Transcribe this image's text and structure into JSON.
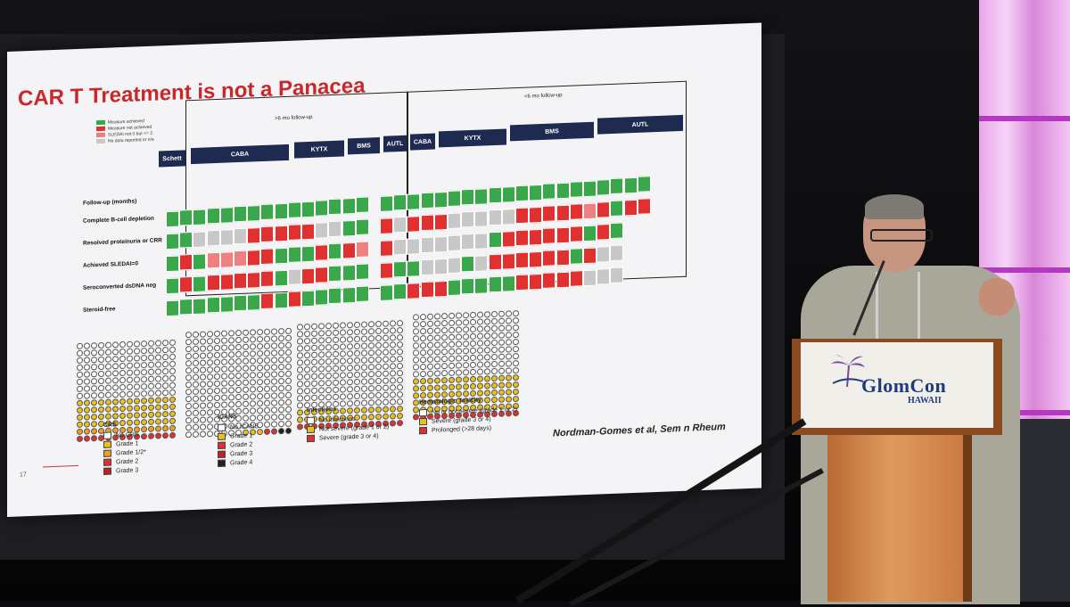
{
  "slide": {
    "title": "CAR T Treatment is not a Panacea",
    "page_number": "17",
    "citation": "Nordman-Gomes et al, Sem   n Rheum",
    "legend": [
      {
        "label": "Measure achieved",
        "color": "#3aa84a"
      },
      {
        "label": "Measure not achieved",
        "color": "#e03030"
      },
      {
        "label": "SLEDAI not 0 but <= 2",
        "color": "#ef8080"
      },
      {
        "label": "No data reported or n/a",
        "color": "#c8c8c8"
      }
    ],
    "follow_long": ">6 mo follow-up",
    "follow_short": "<6 mo follow-up",
    "groups_long": [
      "Schett",
      "CABA",
      "KYTX",
      "BMS",
      "AUTL"
    ],
    "groups_short": [
      "CABA",
      "KYTX",
      "BMS",
      "AUTL"
    ],
    "row_labels": [
      "Follow-up (months)",
      "Complete B-cell depletion",
      "Resolved proteinuria or CRR",
      "Achieved SLEDAI=0",
      "Seroconverted dsDNA neg",
      "Steroid-free"
    ],
    "crs_legend": {
      "title": "CRS",
      "items": [
        "No CRS",
        "Grade 1",
        "Grade 1/2*",
        "Grade 2",
        "Grade 3"
      ]
    },
    "icans_legend": {
      "title": "ICANS",
      "items": [
        "No ICANS",
        "Grade 1",
        "Grade 2",
        "Grade 3",
        "Grade 4"
      ]
    },
    "infections_legend": {
      "title": "Infections",
      "items": [
        "No infections",
        "Not severe (grade 1 or 2)",
        "Severe (grade 3 or 4)"
      ]
    },
    "heme_legend": {
      "title": "Hematologic Toxicity",
      "items": [
        "No or not severe (grade 1 or 2)",
        "Severe (grade 3 or 4)",
        "Prolonged (>28 days)"
      ]
    }
  },
  "podium": {
    "logo_text": "GlomCon",
    "logo_sub": "HAWAII"
  },
  "colors": {
    "green": "#3aa84a",
    "red": "#e03030",
    "pink": "#ef8080",
    "grey": "#c8c8c8",
    "yellow": "#e8c020",
    "orange": "#f0a020",
    "darkred": "#c02020",
    "black": "#222222"
  }
}
